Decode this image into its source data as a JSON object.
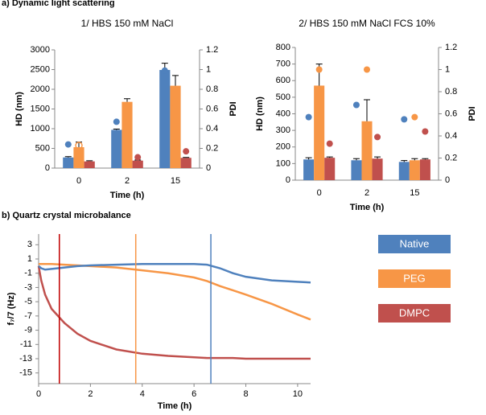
{
  "headings": [
    "a) Dynamic light scattering",
    "b) Quartz crystal microbalance"
  ],
  "chart_data": [
    {
      "type": "bar",
      "title": "1/ HBS 150 mM NaCl",
      "xlabel": "Time (h)",
      "ylabel": "HD (nm)",
      "y2label": "PDI",
      "categories": [
        "0",
        "2",
        "15"
      ],
      "ylim": [
        0,
        3000
      ],
      "yticks": [
        0,
        500,
        1000,
        1500,
        2000,
        2500,
        3000
      ],
      "y2lim": [
        0,
        1.2
      ],
      "y2ticks": [
        0,
        0.2,
        0.4,
        0.6,
        0.8,
        1,
        1.2
      ],
      "series": [
        {
          "color": "#4f81bd",
          "values": [
            270,
            970,
            2490
          ],
          "errors": [
            20,
            20,
            170
          ]
        },
        {
          "color": "#f79646",
          "values": [
            530,
            1680,
            2090
          ],
          "errors": [
            130,
            80,
            260
          ]
        },
        {
          "color": "#c0504d",
          "values": [
            170,
            190,
            260
          ],
          "errors": [
            15,
            15,
            10
          ]
        },
        {
          "color": "#4f81bd",
          "axis": "y2",
          "values": [
            0.24,
            0.47,
            0.99
          ]
        },
        {
          "color": "#f79646",
          "axis": "y2",
          "hollow": true,
          "values": [
            0.23,
            0.38,
            0.66
          ]
        },
        {
          "color": "#c0504d",
          "axis": "y2",
          "values": [
            0.04,
            0.11,
            0.17
          ]
        }
      ]
    },
    {
      "type": "bar",
      "title": "2/ HBS 150 mM NaCl FCS 10%",
      "xlabel": "Time (h)",
      "ylabel": "HD (nm)",
      "y2label": "PDI",
      "categories": [
        "0",
        "2",
        "15"
      ],
      "ylim": [
        0,
        800
      ],
      "yticks": [
        0,
        100,
        200,
        300,
        400,
        500,
        600,
        700,
        800
      ],
      "y2lim": [
        0,
        1.2
      ],
      "y2ticks": [
        0,
        0.2,
        0.4,
        0.6,
        0.8,
        1,
        1.2
      ],
      "series": [
        {
          "color": "#4f81bd",
          "values": [
            125,
            120,
            110
          ],
          "errors": [
            10,
            10,
            8
          ]
        },
        {
          "color": "#f79646",
          "values": [
            570,
            355,
            120
          ],
          "errors": [
            130,
            130,
            10
          ]
        },
        {
          "color": "#c0504d",
          "values": [
            135,
            130,
            125
          ],
          "errors": [
            5,
            10,
            5
          ]
        },
        {
          "color": "#4f81bd",
          "axis": "y2",
          "values": [
            0.57,
            0.68,
            0.55
          ]
        },
        {
          "color": "#f79646",
          "axis": "y2",
          "values": [
            1.0,
            1.0,
            0.57
          ]
        },
        {
          "color": "#c0504d",
          "axis": "y2",
          "values": [
            0.33,
            0.39,
            0.44
          ]
        }
      ]
    },
    {
      "type": "line",
      "xlabel": "Time (h)",
      "ylabel": "f₇/7 (Hz)",
      "legend": "right",
      "xlim": [
        0,
        10.5
      ],
      "xticks": [
        0,
        2,
        4,
        6,
        8,
        10
      ],
      "ylim": [
        -16.5,
        4.5
      ],
      "yticks": [
        3,
        1,
        -1,
        -3,
        -5,
        -7,
        -9,
        -11,
        -13,
        -15
      ],
      "x": [
        0,
        0.1,
        0.25,
        0.5,
        1,
        1.5,
        2,
        3,
        4,
        5,
        6,
        6.5,
        7,
        7.5,
        8,
        9,
        10,
        10.5
      ],
      "series": [
        {
          "name": "Native",
          "color": "#4f81bd",
          "values": [
            0,
            -0.3,
            -0.5,
            -0.4,
            -0.2,
            0,
            0.1,
            0.2,
            0.3,
            0.3,
            0.3,
            0.2,
            -0.3,
            -1,
            -1.5,
            -2,
            -2.2,
            -2.3
          ]
        },
        {
          "name": "PEG",
          "color": "#f79646",
          "values": [
            0.3,
            0.3,
            0.3,
            0.3,
            0.2,
            0.1,
            0,
            -0.2,
            -0.6,
            -1,
            -1.6,
            -2.1,
            -2.8,
            -3.4,
            -4,
            -5.3,
            -6.8,
            -7.5
          ]
        },
        {
          "name": "DMPC",
          "color": "#c0504d",
          "values": [
            0,
            -2,
            -4,
            -6,
            -8,
            -9.5,
            -10.5,
            -11.7,
            -12.3,
            -12.6,
            -12.8,
            -12.9,
            -12.9,
            -12.9,
            -13,
            -13,
            -13,
            -13
          ]
        }
      ],
      "markers": [
        {
          "x": 0.8,
          "color": "#c00000"
        },
        {
          "x": 3.75,
          "color": "#f79646"
        },
        {
          "x": 6.65,
          "color": "#4f81bd"
        }
      ]
    }
  ]
}
